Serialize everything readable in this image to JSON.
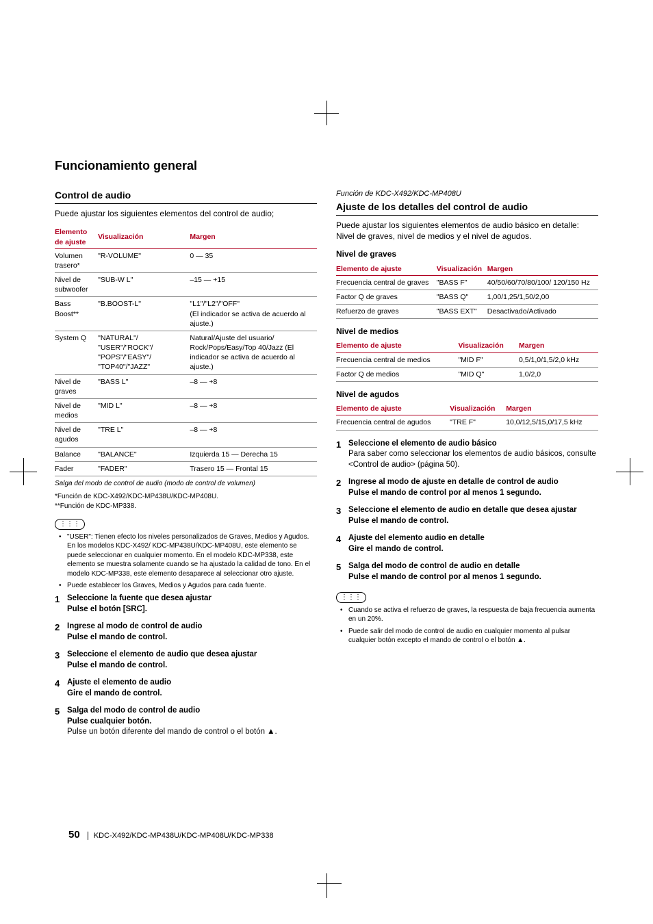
{
  "page": {
    "number": "50",
    "models": "KDC-X492/KDC-MP438U/KDC-MP408U/KDC-MP338",
    "section_title": "Funcionamiento general"
  },
  "left": {
    "title": "Control de audio",
    "intro": "Puede ajustar los siguientes elementos del control de audio;",
    "table": {
      "headers": [
        "Elemento de ajuste",
        "Visualización",
        "Margen"
      ],
      "rows": [
        [
          "Volumen trasero*",
          "\"R-VOLUME\"",
          "0 — 35"
        ],
        [
          "Nivel de subwoofer",
          "\"SUB-W L\"",
          "–15 — +15"
        ],
        [
          "Bass Boost**",
          "\"B.BOOST-L\"",
          "\"L1\"/\"L2\"/\"OFF\"\n(El indicador se activa de acuerdo al ajuste.)"
        ],
        [
          "System Q",
          "\"NATURAL\"/ \"USER\"/\"ROCK\"/ \"POPS\"/\"EASY\"/ \"TOP40\"/\"JAZZ\"",
          "Natural/Ajuste del usuario/ Rock/Pops/Easy/Top 40/Jazz (El indicador se activa de acuerdo al ajuste.)"
        ],
        [
          "Nivel de graves",
          "\"BASS L\"",
          "–8 — +8"
        ],
        [
          "Nivel de medios",
          "\"MID L\"",
          "–8 — +8"
        ],
        [
          "Nivel de agudos",
          "\"TRE L\"",
          "–8 — +8"
        ],
        [
          "Balance",
          "\"BALANCE\"",
          "Izquierda 15 — Derecha 15"
        ],
        [
          "Fader",
          "\"FADER\"",
          "Trasero 15 — Frontal 15"
        ]
      ],
      "exit": "Salga del modo de control de audio (modo de control de volumen)"
    },
    "footnotes": "*Función de KDC-X492/KDC-MP438U/KDC-MP408U.\n**Función de KDC-MP338.",
    "notes": [
      "\"USER\": Tienen efecto los niveles personalizados de Graves, Medios y Agudos. En los modelos KDC-X492/ KDC-MP438U/KDC-MP408U, este elemento se puede seleccionar en cualquier momento. En el modelo KDC-MP338, este elemento se muestra solamente cuando se ha ajustado la calidad de tono. En el modelo KDC-MP338, este elemento desaparece al seleccionar otro ajuste.",
      "Puede establecer los Graves, Medios y Agudos para cada fuente."
    ],
    "steps": [
      {
        "title": "Seleccione la fuente que desea ajustar",
        "action": "Pulse el botón [SRC]."
      },
      {
        "title": "Ingrese al modo de control de audio",
        "action": "Pulse el mando de control."
      },
      {
        "title": "Seleccione el elemento de audio que desea ajustar",
        "action": "Pulse el mando de control."
      },
      {
        "title": "Ajuste el elemento de audio",
        "action": "Gire el mando de control."
      },
      {
        "title": "Salga del modo de control de audio",
        "action": "Pulse cualquier botón.",
        "body": "Pulse un botón diferente del mando de control o el botón ▲."
      }
    ]
  },
  "right": {
    "func_note": "Función de KDC-X492/KDC-MP408U",
    "title": "Ajuste de los detalles del control de audio",
    "intro": "Puede ajustar los siguientes elementos de audio básico en detalle: Nivel de graves, nivel de medios y el nivel de agudos.",
    "graves": {
      "title": "Nivel de graves",
      "headers": [
        "Elemento de ajuste",
        "Visualización",
        "Margen"
      ],
      "rows": [
        [
          "Frecuencia central de graves",
          "\"BASS F\"",
          "40/50/60/70/80/100/ 120/150 Hz"
        ],
        [
          "Factor Q de graves",
          "\"BASS Q\"",
          "1,00/1,25/1,50/2,00"
        ],
        [
          "Refuerzo de graves",
          "\"BASS EXT\"",
          "Desactivado/Activado"
        ]
      ]
    },
    "medios": {
      "title": "Nivel de medios",
      "headers": [
        "Elemento de ajuste",
        "Visualización",
        "Margen"
      ],
      "rows": [
        [
          "Frecuencia central de medios",
          "\"MID  F\"",
          "0,5/1,0/1,5/2,0 kHz"
        ],
        [
          "Factor Q de medios",
          "\"MID  Q\"",
          "1,0/2,0"
        ]
      ]
    },
    "agudos": {
      "title": "Nivel de agudos",
      "headers": [
        "Elemento de ajuste",
        "Visualización",
        "Margen"
      ],
      "rows": [
        [
          "Frecuencia central de agudos",
          "\"TRE  F\"",
          "10,0/12,5/15,0/17,5 kHz"
        ]
      ]
    },
    "steps": [
      {
        "title": "Seleccione el elemento de audio básico",
        "body": "Para saber como seleccionar los elementos de audio básicos, consulte <Control de audio> (página 50)."
      },
      {
        "title": "Ingrese al modo de ajuste en detalle de control de audio",
        "action": "Pulse el mando de control por al menos 1 segundo."
      },
      {
        "title": "Seleccione el elemento de audio en detalle que desea ajustar",
        "action": "Pulse el mando de control."
      },
      {
        "title": "Ajuste del elemento audio en detalle",
        "action": "Gire el mando de control."
      },
      {
        "title": "Salga del modo de control de audio en detalle",
        "action": "Pulse el mando de control por al menos 1 segundo."
      }
    ],
    "notes": [
      "Cuando se activa el refuerzo de graves, la respuesta de baja frecuencia aumenta en un 20%.",
      "Puede salir del modo de control de audio en cualquier momento al pulsar cualquier botón excepto el mando de control o el botón ▲."
    ]
  }
}
